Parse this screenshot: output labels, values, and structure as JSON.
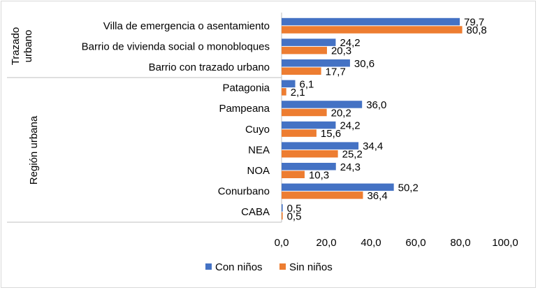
{
  "chart_data": {
    "type": "bar",
    "orientation": "horizontal",
    "categories": [
      "Villa de emergencia o asentamiento",
      "Barrio de vivienda social o monobloques",
      "Barrio con trazado urbano",
      "Patagonia",
      "Pampeana",
      "Cuyo",
      "NEA",
      "NOA",
      "Conurbano",
      "CABA"
    ],
    "groups": [
      {
        "label": "Trazado urbano",
        "categories": [
          "Villa de emergencia o asentamiento",
          "Barrio de vivienda social o monobloques",
          "Barrio con trazado urbano"
        ]
      },
      {
        "label": "Región urbana",
        "categories": [
          "Patagonia",
          "Pampeana",
          "Cuyo",
          "NEA",
          "NOA",
          "Conurbano",
          "CABA"
        ]
      }
    ],
    "series": [
      {
        "name": "Con niños",
        "color": "#4472C4",
        "values": [
          79.7,
          24.2,
          30.6,
          6.1,
          36.0,
          24.2,
          34.4,
          24.3,
          50.2,
          0.5
        ],
        "labels": [
          "79,7",
          "24,2",
          "30,6",
          "6,1",
          "36,0",
          "24,2",
          "34,4",
          "24,3",
          "50,2",
          "0,5"
        ]
      },
      {
        "name": "Sin niños",
        "color": "#ED7D31",
        "values": [
          80.8,
          20.3,
          17.7,
          2.1,
          20.2,
          15.6,
          25.2,
          10.3,
          36.4,
          0.5
        ],
        "labels": [
          "80,8",
          "20,3",
          "17,7",
          "2,1",
          "20,2",
          "15,6",
          "25,2",
          "10,3",
          "36,4",
          "0,5"
        ]
      }
    ],
    "xlim": [
      0,
      100
    ],
    "xticks": [
      0,
      20,
      40,
      60,
      80,
      100
    ],
    "xtick_labels": [
      "0,0",
      "20,0",
      "40,0",
      "60,0",
      "80,0",
      "100,0"
    ],
    "legend_position": "bottom",
    "title": "",
    "xlabel": "",
    "ylabel": ""
  }
}
